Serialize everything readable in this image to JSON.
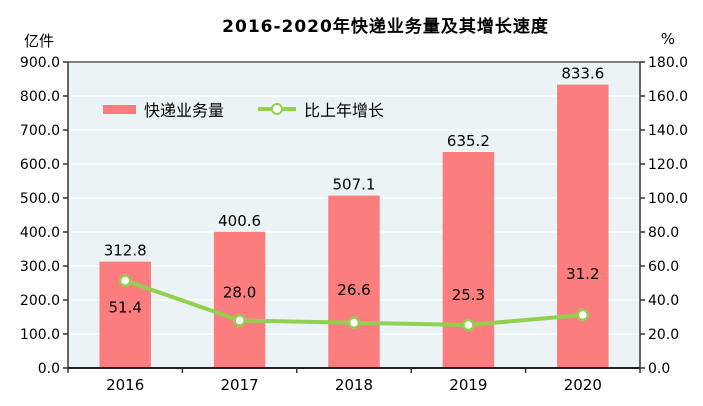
{
  "chart_data": {
    "type": "combo-bar-line",
    "title": "2016-2020年快递业务量及其增长速度",
    "categories": [
      "2016",
      "2017",
      "2018",
      "2019",
      "2020"
    ],
    "series": [
      {
        "name": "快递业务量",
        "type": "bar",
        "axis": "left",
        "color": "#FB7D7D",
        "values": [
          312.8,
          400.6,
          507.1,
          635.2,
          833.6
        ]
      },
      {
        "name": "比上年增长",
        "type": "line",
        "axis": "right",
        "color": "#92D050",
        "marker": "circle-white",
        "values": [
          51.4,
          28.0,
          26.6,
          25.3,
          31.2
        ],
        "label_dy": [
          27,
          -28,
          -33,
          -30,
          -41
        ]
      }
    ],
    "left_axis": {
      "unit": "亿件",
      "min": 0,
      "max": 900,
      "step": 100,
      "tick_format": "one-decimal"
    },
    "right_axis": {
      "unit": "%",
      "min": 0,
      "max": 180,
      "step": 20,
      "tick_format": "one-decimal"
    },
    "grid": true,
    "legend_position": "inside-top-left",
    "plot_bg": "#EBF3F6",
    "gridline_color": "#F7FBFC",
    "border_color": "#4a4a4a",
    "text_color": "#000000"
  }
}
